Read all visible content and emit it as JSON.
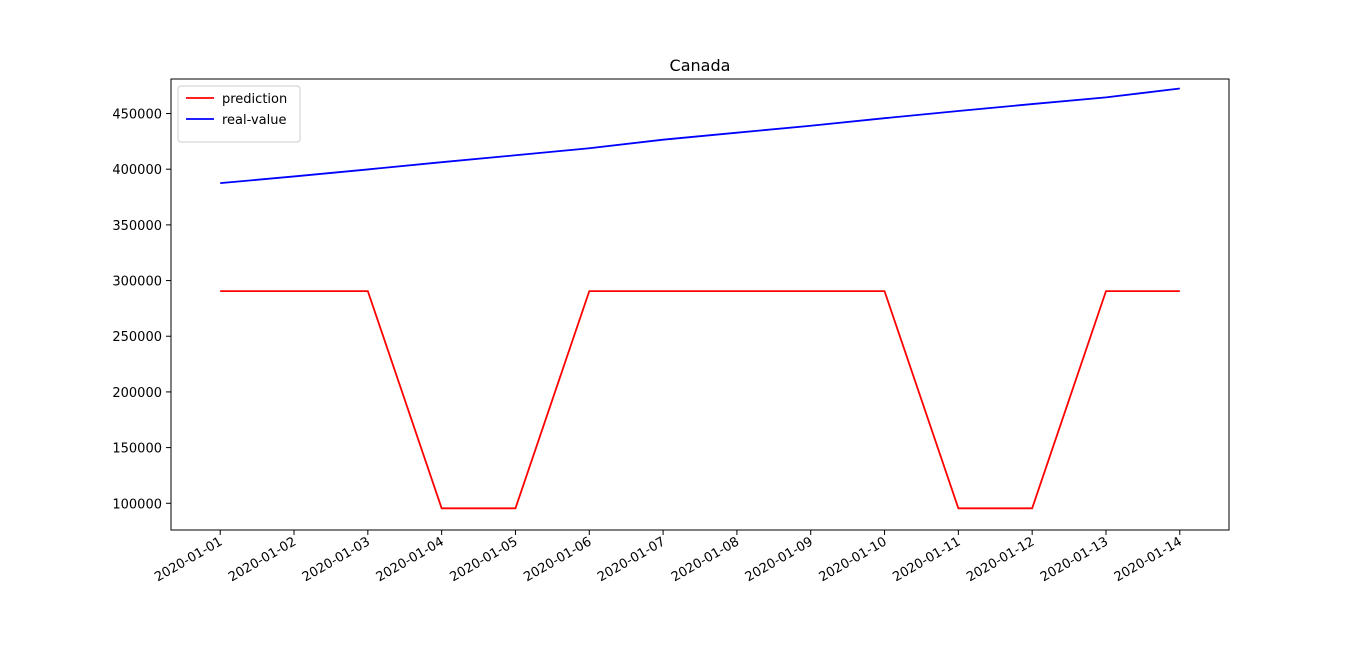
{
  "chart_data": {
    "type": "line",
    "title": "Canada",
    "xlabel": "",
    "ylabel": "",
    "x": [
      "2020-01-01",
      "2020-01-02",
      "2020-01-03",
      "2020-01-04",
      "2020-01-05",
      "2020-01-06",
      "2020-01-07",
      "2020-01-08",
      "2020-01-09",
      "2020-01-10",
      "2020-01-11",
      "2020-01-12",
      "2020-01-13",
      "2020-01-14"
    ],
    "xlim": [
      "2019-12-31T08:00",
      "2020-01-14T16:00"
    ],
    "ylim": [
      76000,
      481000
    ],
    "yticks": [
      100000,
      150000,
      200000,
      250000,
      300000,
      350000,
      400000,
      450000
    ],
    "ytick_labels": [
      "100000",
      "150000",
      "200000",
      "250000",
      "300000",
      "350000",
      "400000",
      "450000"
    ],
    "grid": false,
    "legend_position": "top-left",
    "series": [
      {
        "name": "prediction",
        "color": "#ff0000",
        "values": [
          290500,
          290500,
          290500,
          95500,
          95500,
          290500,
          290500,
          290500,
          290500,
          290500,
          95500,
          95500,
          290500,
          290500
        ]
      },
      {
        "name": "real-value",
        "color": "#0000ff",
        "values": [
          387500,
          393500,
          399800,
          406300,
          412500,
          418800,
          426500,
          432800,
          439000,
          445800,
          452300,
          458500,
          464500,
          472500
        ]
      }
    ]
  }
}
